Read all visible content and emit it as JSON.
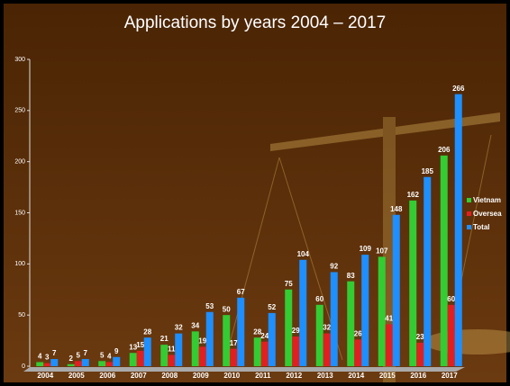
{
  "chart_data": {
    "type": "bar",
    "title": "Applications by years 2004 – 2017",
    "categories": [
      "2004",
      "2005",
      "2006",
      "2007",
      "2008",
      "2009",
      "2010",
      "2011",
      "2012",
      "2013",
      "2014",
      "2015",
      "2016",
      "2017"
    ],
    "series": [
      {
        "name": "Vietnam",
        "color": "#33cc33",
        "values": [
          4,
          2,
          5,
          13,
          21,
          34,
          50,
          28,
          75,
          60,
          83,
          107,
          162,
          206
        ]
      },
      {
        "name": "Oversea",
        "color": "#e02020",
        "values": [
          3,
          5,
          4,
          15,
          11,
          19,
          17,
          24,
          29,
          32,
          26,
          41,
          23,
          60
        ]
      },
      {
        "name": "Total",
        "color": "#1e8fff",
        "values": [
          7,
          7,
          9,
          28,
          32,
          53,
          67,
          52,
          104,
          92,
          109,
          148,
          185,
          266
        ]
      }
    ],
    "ylim": [
      0,
      300
    ],
    "yticks": [
      0,
      50,
      100,
      150,
      200,
      250,
      300
    ],
    "legend": "right"
  }
}
